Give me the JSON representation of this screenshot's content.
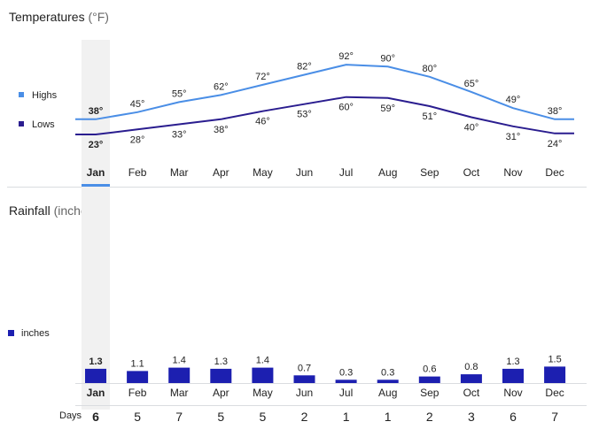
{
  "temperatures": {
    "title": "Temperatures",
    "unit": "(°F)",
    "legend": {
      "highs": "Highs",
      "lows": "Lows"
    },
    "colors": {
      "highs": "#4a8ee6",
      "lows": "#2a1d8f"
    }
  },
  "rainfall": {
    "title": "Rainfall",
    "unit": "(inches)",
    "legend": "inches",
    "days_label": "Days",
    "color": "#1c1fb0"
  },
  "selected_month_index": 0,
  "chart_data": [
    {
      "type": "line",
      "title": "Temperatures (°F)",
      "categories": [
        "Jan",
        "Feb",
        "Mar",
        "Apr",
        "May",
        "Jun",
        "Jul",
        "Aug",
        "Sep",
        "Oct",
        "Nov",
        "Dec"
      ],
      "series": [
        {
          "name": "Highs",
          "values": [
            38,
            45,
            55,
            62,
            72,
            82,
            92,
            90,
            80,
            65,
            49,
            38
          ],
          "labels": [
            "38°",
            "45°",
            "55°",
            "62°",
            "72°",
            "82°",
            "92°",
            "90°",
            "80°",
            "65°",
            "49°",
            "38°"
          ]
        },
        {
          "name": "Lows",
          "values": [
            23,
            28,
            33,
            38,
            46,
            53,
            60,
            59,
            51,
            40,
            31,
            24
          ],
          "labels": [
            "23°",
            "28°",
            "33°",
            "38°",
            "46°",
            "53°",
            "60°",
            "59°",
            "51°",
            "40°",
            "31°",
            "24°"
          ]
        }
      ],
      "legend_position": "left",
      "grid": false
    },
    {
      "type": "bar",
      "title": "Rainfall (inches)",
      "categories": [
        "Jan",
        "Feb",
        "Mar",
        "Apr",
        "May",
        "Jun",
        "Jul",
        "Aug",
        "Sep",
        "Oct",
        "Nov",
        "Dec"
      ],
      "series": [
        {
          "name": "inches",
          "values": [
            1.3,
            1.1,
            1.4,
            1.3,
            1.4,
            0.7,
            0.3,
            0.3,
            0.6,
            0.8,
            1.3,
            1.5
          ],
          "labels": [
            "1.3",
            "1.1",
            "1.4",
            "1.3",
            "1.4",
            "0.7",
            "0.3",
            "0.3",
            "0.6",
            "0.8",
            "1.3",
            "1.5"
          ]
        }
      ],
      "days": [
        6,
        5,
        7,
        5,
        5,
        2,
        1,
        1,
        2,
        3,
        6,
        7
      ],
      "legend_position": "left",
      "grid": false
    }
  ]
}
